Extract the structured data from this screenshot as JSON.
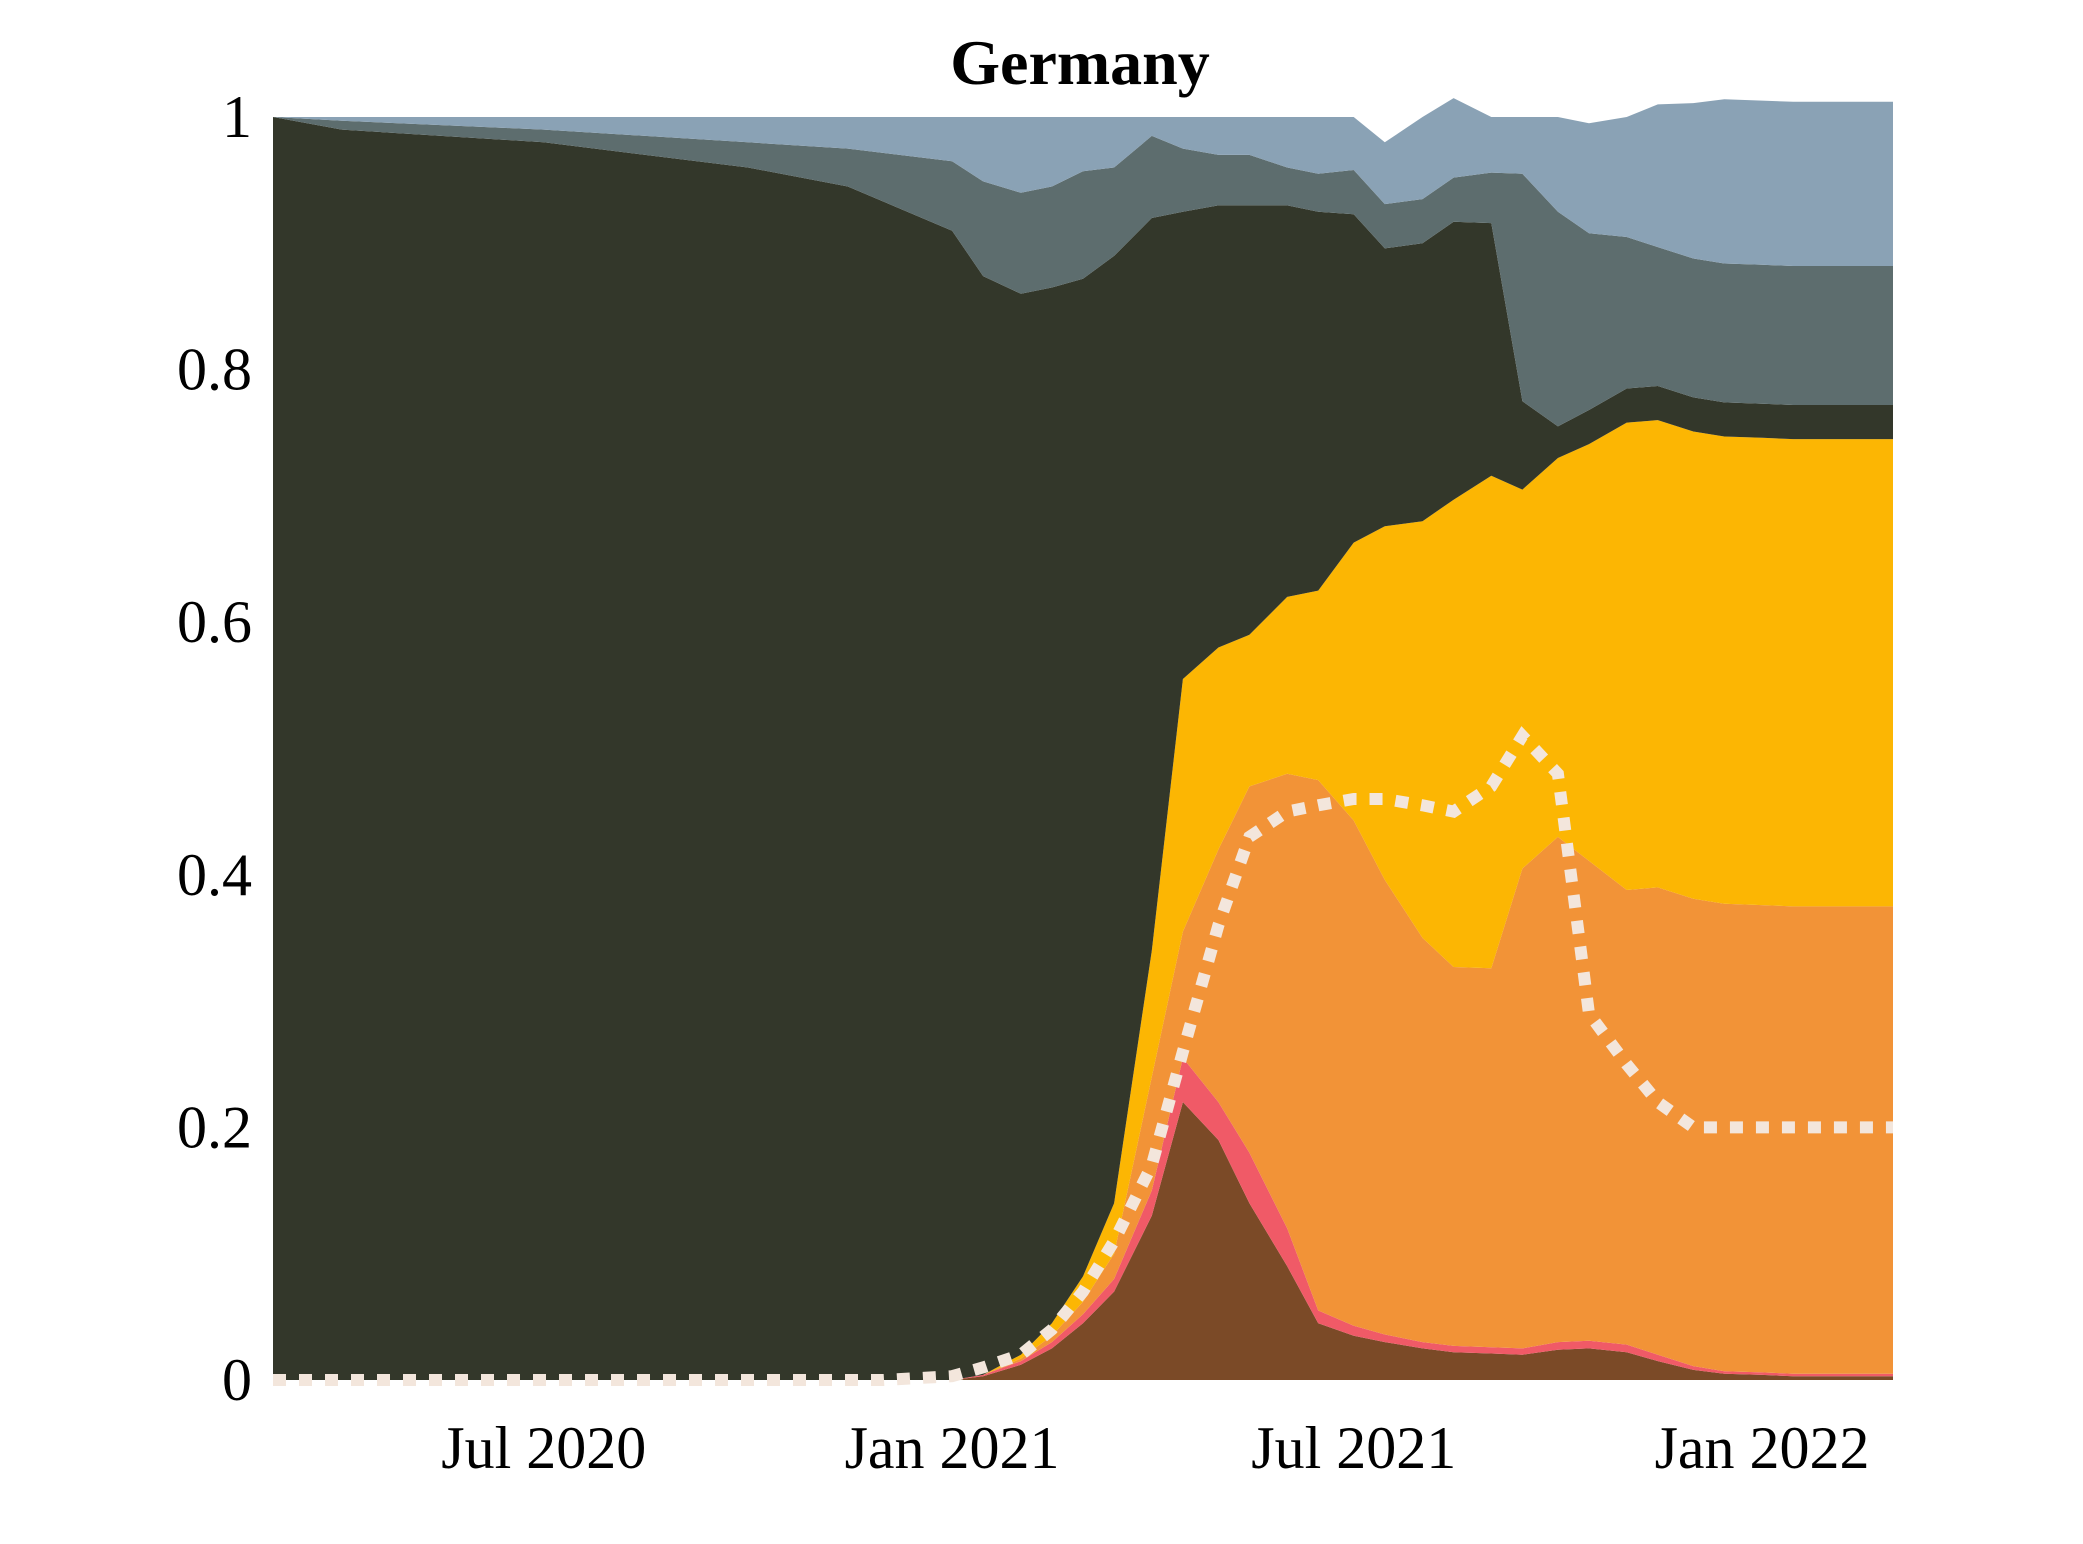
{
  "chart_data": {
    "type": "area",
    "stacked": true,
    "title": "Germany",
    "xlabel": "",
    "ylabel": "",
    "xlim": [
      "2020-03-01",
      "2022-03-01"
    ],
    "ylim": [
      0,
      1
    ],
    "grid": false,
    "legend": "none",
    "x_ticks": [
      {
        "date": "2020-07-01",
        "label": "Jul 2020"
      },
      {
        "date": "2021-01-01",
        "label": "Jan 2021"
      },
      {
        "date": "2021-07-01",
        "label": "Jul 2021"
      },
      {
        "date": "2022-01-01",
        "label": "Jan 2022"
      }
    ],
    "y_ticks": [
      {
        "value": 0,
        "label": "0"
      },
      {
        "value": 0.2,
        "label": "0.2"
      },
      {
        "value": 0.4,
        "label": "0.4"
      },
      {
        "value": 0.6,
        "label": "0.6"
      },
      {
        "value": 0.8,
        "label": "0.8"
      },
      {
        "value": 1,
        "label": "1"
      }
    ],
    "x": [
      "2020-03-01",
      "2020-04-01",
      "2020-07-01",
      "2020-10-01",
      "2020-11-15",
      "2021-01-01",
      "2021-01-15",
      "2021-02-01",
      "2021-02-15",
      "2021-03-01",
      "2021-03-15",
      "2021-04-01",
      "2021-04-15",
      "2021-05-01",
      "2021-05-15",
      "2021-06-01",
      "2021-06-15",
      "2021-07-01",
      "2021-07-15",
      "2021-08-01",
      "2021-08-15",
      "2021-09-01",
      "2021-09-15",
      "2021-10-01",
      "2021-10-15",
      "2021-11-01",
      "2021-11-15",
      "2021-12-01",
      "2021-12-15",
      "2022-01-01",
      "2022-01-15",
      "2022-02-01",
      "2022-02-15",
      "2022-03-01"
    ],
    "series": [
      {
        "color": "#7b4a27",
        "values": [
          0,
          0,
          0,
          0,
          0,
          0,
          0.003,
          0.012,
          0.025,
          0.045,
          0.07,
          0.13,
          0.22,
          0.19,
          0.14,
          0.09,
          0.045,
          0.035,
          0.03,
          0.025,
          0.022,
          0.021,
          0.02,
          0.024,
          0.025,
          0.022,
          0.015,
          0.008,
          0.005,
          0.004,
          0.003,
          0.003,
          0.003,
          0.003
        ]
      },
      {
        "color": "#f05a67",
        "values": [
          0,
          0,
          0,
          0,
          0,
          0,
          0.001,
          0.003,
          0.005,
          0.007,
          0.01,
          0.02,
          0.035,
          0.03,
          0.04,
          0.03,
          0.01,
          0.008,
          0.006,
          0.005,
          0.005,
          0.005,
          0.005,
          0.006,
          0.006,
          0.006,
          0.005,
          0.003,
          0.002,
          0.002,
          0.002,
          0.002,
          0.002,
          0.002
        ]
      },
      {
        "color": "#f29337",
        "values": [
          0,
          0,
          0,
          0,
          0,
          0,
          0,
          0.002,
          0.005,
          0.01,
          0.02,
          0.09,
          0.1,
          0.2,
          0.29,
          0.36,
          0.42,
          0.4,
          0.36,
          0.32,
          0.3,
          0.3,
          0.38,
          0.4,
          0.38,
          0.36,
          0.37,
          0.37,
          0.37,
          0.37,
          0.37,
          0.37,
          0.37,
          0.37
        ]
      },
      {
        "color": "#fcb603",
        "values": [
          0,
          0,
          0,
          0,
          0,
          0,
          0,
          0.003,
          0.01,
          0.02,
          0.04,
          0.1,
          0.2,
          0.16,
          0.12,
          0.14,
          0.15,
          0.22,
          0.28,
          0.33,
          0.37,
          0.39,
          0.3,
          0.3,
          0.33,
          0.37,
          0.37,
          0.37,
          0.37,
          0.37,
          0.37,
          0.37,
          0.37,
          0.37
        ]
      },
      {
        "color": "#33372a",
        "values": [
          1,
          0.99,
          0.98,
          0.96,
          0.945,
          0.91,
          0.87,
          0.84,
          0.82,
          0.79,
          0.75,
          0.58,
          0.37,
          0.35,
          0.34,
          0.31,
          0.3,
          0.26,
          0.22,
          0.22,
          0.22,
          0.2,
          0.07,
          0.025,
          0.027,
          0.027,
          0.027,
          0.027,
          0.027,
          0.027,
          0.027,
          0.027,
          0.027,
          0.027
        ]
      },
      {
        "color": "#5d6d6e",
        "values": [
          0,
          0.007,
          0.01,
          0.02,
          0.03,
          0.055,
          0.075,
          0.08,
          0.08,
          0.085,
          0.07,
          0.065,
          0.05,
          0.04,
          0.04,
          0.03,
          0.03,
          0.035,
          0.035,
          0.035,
          0.035,
          0.04,
          0.18,
          0.17,
          0.14,
          0.12,
          0.11,
          0.11,
          0.11,
          0.11,
          0.11,
          0.11,
          0.11,
          0.11
        ]
      },
      {
        "color": "#8aa2b5",
        "values": [
          0,
          0.003,
          0.01,
          0.02,
          0.025,
          0.035,
          0.051,
          0.06,
          0.055,
          0.043,
          0.04,
          0.015,
          0.025,
          0.03,
          0.03,
          0.04,
          0.045,
          0.042,
          0.049,
          0.065,
          0.063,
          0.044,
          0.045,
          0.075,
          0.087,
          0.095,
          0.113,
          0.123,
          0.13,
          0.13,
          0.13,
          0.13,
          0.13,
          0.13
        ]
      }
    ],
    "overlay_line": {
      "style": "dotted",
      "color": "#f3e6dc",
      "x": [
        "2020-03-01",
        "2020-12-01",
        "2021-01-01",
        "2021-01-15",
        "2021-02-01",
        "2021-02-15",
        "2021-03-01",
        "2021-03-15",
        "2021-04-01",
        "2021-04-15",
        "2021-05-01",
        "2021-05-15",
        "2021-06-01",
        "2021-06-15",
        "2021-07-01",
        "2021-07-15",
        "2021-08-01",
        "2021-08-15",
        "2021-09-01",
        "2021-09-15",
        "2021-10-01",
        "2021-10-15",
        "2021-11-01",
        "2021-11-15",
        "2021-12-01",
        "2021-12-15",
        "2022-01-01",
        "2022-01-15",
        "2022-02-01",
        "2022-02-15",
        "2022-03-01"
      ],
      "values": [
        0,
        0,
        0.003,
        0.01,
        0.02,
        0.04,
        0.07,
        0.11,
        0.17,
        0.26,
        0.36,
        0.43,
        0.45,
        0.455,
        0.46,
        0.46,
        0.455,
        0.45,
        0.47,
        0.51,
        0.48,
        0.29,
        0.25,
        0.22,
        0.2,
        0.2,
        0.2,
        0.2,
        0.2,
        0.2,
        0.2
      ]
    }
  }
}
